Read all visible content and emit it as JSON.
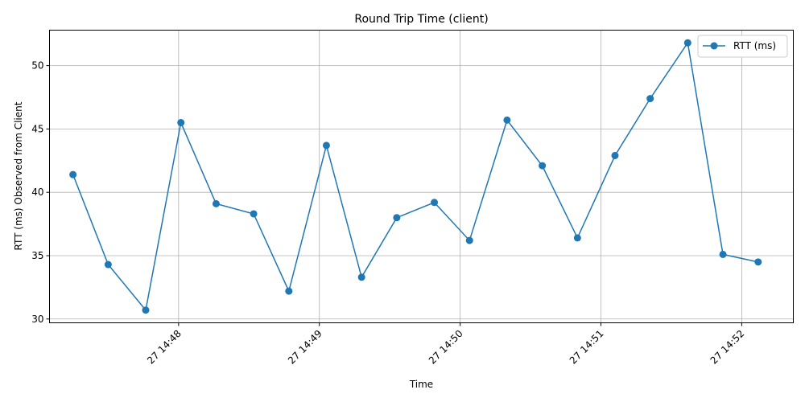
{
  "chart_data": {
    "type": "line",
    "title": "Round Trip Time (client)",
    "xlabel": "Time",
    "ylabel": "RTT (ms) Observed from Client",
    "x_ticks": [
      "27 14:48",
      "27 14:49",
      "27 14:50",
      "27 14:51",
      "27 14:52"
    ],
    "xlim": [
      "14:47:05",
      "14:52:22"
    ],
    "ylim": [
      29.7,
      52.8
    ],
    "y_ticks": [
      30,
      35,
      40,
      45,
      50
    ],
    "grid": true,
    "legend_position": "top-right",
    "series": [
      {
        "name": "RTT (ms)",
        "color": "#1f77b4",
        "marker": "circle",
        "x": [
          "14:47:15",
          "14:47:30",
          "14:47:46",
          "14:48:01",
          "14:48:16",
          "14:48:32",
          "14:48:47",
          "14:49:03",
          "14:49:18",
          "14:49:33",
          "14:49:49",
          "14:50:04",
          "14:50:20",
          "14:50:35",
          "14:50:50",
          "14:51:06",
          "14:51:21",
          "14:51:37",
          "14:51:52",
          "14:52:07"
        ],
        "values": [
          41.4,
          34.3,
          30.7,
          45.5,
          39.1,
          38.3,
          32.2,
          43.7,
          33.3,
          38.0,
          39.2,
          36.2,
          45.7,
          42.1,
          36.4,
          42.9,
          47.4,
          51.8,
          35.1,
          34.5
        ]
      }
    ]
  }
}
